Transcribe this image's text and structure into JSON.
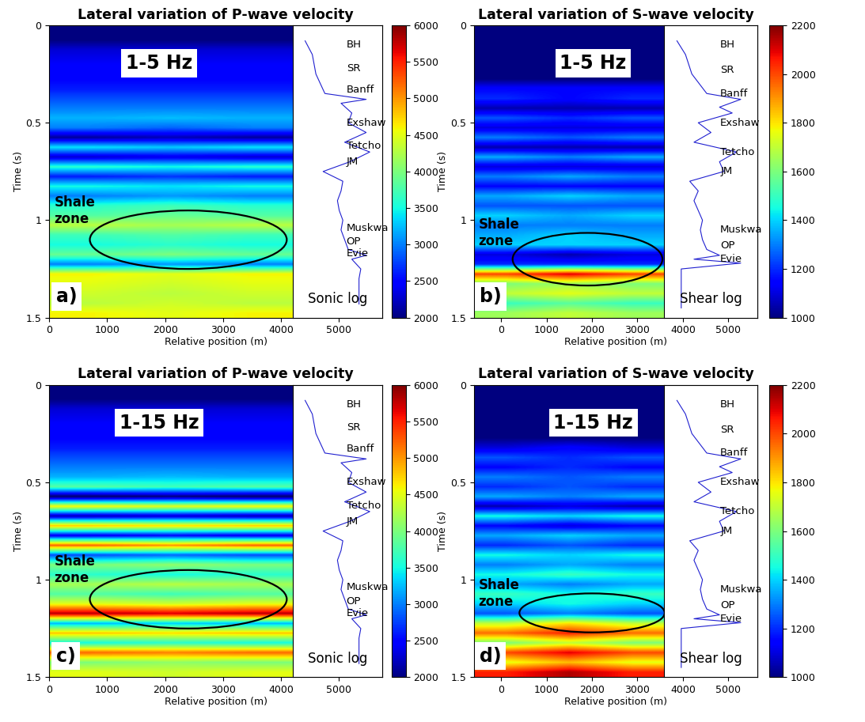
{
  "chart_data": [
    {
      "type": "heatmap",
      "title": "Lateral variation of P-wave velocity",
      "xlabel": "Relative position (m)",
      "ylabel": "Time (s)",
      "xlim": [
        0,
        5750
      ],
      "xticks": [
        0,
        1000,
        2000,
        3000,
        4000,
        5000
      ],
      "ylim": [
        1.5,
        0
      ],
      "yticks": [
        0,
        0.5,
        1,
        1.5
      ],
      "image_x": [
        0,
        4200
      ],
      "image_y": [
        0,
        1.5
      ],
      "cells": [
        [
          2000,
          2000,
          2000
        ],
        [
          2000,
          2000,
          2000
        ],
        [
          2300,
          2300,
          2300
        ],
        [
          2400,
          2400,
          2400
        ],
        [
          2500,
          2500,
          2500
        ],
        [
          2500,
          2500,
          2500
        ],
        [
          2600,
          2600,
          2600
        ],
        [
          2800,
          2800,
          2800
        ],
        [
          3000,
          3000,
          3000
        ],
        [
          3200,
          3250,
          3200
        ],
        [
          3000,
          2900,
          3000
        ],
        [
          2100,
          2200,
          2100
        ],
        [
          3400,
          3300,
          3400
        ],
        [
          2300,
          2400,
          2300
        ],
        [
          3600,
          3500,
          3600
        ],
        [
          2600,
          2700,
          2600
        ],
        [
          3500,
          3400,
          3500
        ],
        [
          3000,
          3100,
          3000
        ],
        [
          3600,
          3700,
          3600
        ],
        [
          3800,
          3900,
          3800
        ],
        [
          4300,
          4200,
          4300
        ],
        [
          3700,
          3800,
          3700
        ],
        [
          3500,
          3600,
          3500
        ],
        [
          3900,
          4000,
          3900
        ],
        [
          3000,
          3100,
          3000
        ],
        [
          4600,
          4500,
          4600
        ],
        [
          4500,
          4400,
          4500
        ],
        [
          4400,
          4300,
          4400
        ],
        [
          4300,
          4400,
          4300
        ],
        [
          4600,
          4500,
          4600
        ]
      ],
      "colorbar": {
        "range": [
          2000,
          6000
        ],
        "ticks": [
          2000,
          2500,
          3000,
          3500,
          4000,
          4500,
          5000,
          5500,
          6000
        ]
      },
      "band_label": "1-5 Hz",
      "panel_label": "a)",
      "zone": {
        "text": "Shale\nzone",
        "x": 2400,
        "y": 1.1,
        "width": 3400,
        "height": 0.3
      },
      "well_log": {
        "label": "Sonic log",
        "xlim": [
          1500,
          6500
        ],
        "time": [
          0.08,
          0.15,
          0.25,
          0.35,
          0.38,
          0.4,
          0.45,
          0.5,
          0.55,
          0.6,
          0.65,
          0.7,
          0.75,
          0.8,
          0.85,
          0.9,
          0.95,
          1.0,
          1.05,
          1.1,
          1.15,
          1.18,
          1.2,
          1.25,
          1.3,
          1.43
        ],
        "values": [
          2200,
          2600,
          2800,
          3300,
          5600,
          4200,
          4800,
          4600,
          5600,
          4400,
          5800,
          4700,
          3200,
          4300,
          4200,
          4000,
          4100,
          4300,
          4200,
          4400,
          4600,
          5600,
          4800,
          5300,
          5200,
          5200
        ],
        "formations": [
          {
            "text": "BH",
            "time": 0.1
          },
          {
            "text": "SR",
            "time": 0.22
          },
          {
            "text": "Banff",
            "time": 0.33
          },
          {
            "text": "Exshaw",
            "time": 0.5
          },
          {
            "text": "Tetcho",
            "time": 0.62
          },
          {
            "text": "JM",
            "time": 0.7
          },
          {
            "text": "Muskwa",
            "time": 1.04
          },
          {
            "text": "OP",
            "time": 1.11
          },
          {
            "text": "Evie",
            "time": 1.17
          }
        ]
      }
    },
    {
      "type": "heatmap",
      "title": "Lateral variation of S-wave velocity",
      "xlabel": "Relative position (m)",
      "ylabel": "Time (s)",
      "xlim": [
        -600,
        5650
      ],
      "xticks": [
        0,
        1000,
        2000,
        3000,
        4000,
        5000
      ],
      "ylim": [
        1.5,
        0
      ],
      "yticks": [
        0,
        0.5,
        1,
        1.5
      ],
      "image_x": [
        -600,
        3590
      ],
      "image_y": [
        0,
        1.5
      ],
      "cells": [
        [
          1000,
          1000,
          1000
        ],
        [
          1000,
          1000,
          1000
        ],
        [
          1000,
          1000,
          1000
        ],
        [
          1000,
          1000,
          1000
        ],
        [
          1000,
          1000,
          1000
        ],
        [
          1000,
          1000,
          1000
        ],
        [
          1150,
          1150,
          1150
        ],
        [
          1200,
          1150,
          1200
        ],
        [
          1050,
          1050,
          1050
        ],
        [
          1250,
          1200,
          1250
        ],
        [
          1100,
          1100,
          1100
        ],
        [
          1300,
          1250,
          1300
        ],
        [
          1050,
          1050,
          1050
        ],
        [
          1350,
          1300,
          1350
        ],
        [
          1100,
          1100,
          1100
        ],
        [
          1300,
          1350,
          1300
        ],
        [
          1150,
          1150,
          1150
        ],
        [
          1350,
          1400,
          1350
        ],
        [
          1250,
          1250,
          1250
        ],
        [
          1400,
          1350,
          1400
        ],
        [
          1300,
          1300,
          1300
        ],
        [
          1350,
          1400,
          1350
        ],
        [
          1400,
          1400,
          1400
        ],
        [
          1100,
          1050,
          1100
        ],
        [
          1200,
          1200,
          1200
        ],
        [
          2000,
          2100,
          2000
        ],
        [
          1600,
          1650,
          1600
        ],
        [
          1700,
          1750,
          1700
        ],
        [
          1500,
          1550,
          1500
        ],
        [
          1650,
          1700,
          1650
        ]
      ],
      "colorbar": {
        "range": [
          1000,
          2200
        ],
        "ticks": [
          1000,
          1200,
          1400,
          1600,
          1800,
          2000,
          2200
        ]
      },
      "band_label": "1-5 Hz",
      "panel_label": "b)",
      "zone": {
        "text": "Shale\nzone",
        "x": 1900,
        "y": 1.2,
        "width": 3300,
        "height": 0.27
      },
      "well_log": {
        "label": "Shear log",
        "xlim": [
          800,
          3000
        ],
        "time": [
          0.08,
          0.15,
          0.25,
          0.35,
          0.38,
          0.42,
          0.45,
          0.5,
          0.55,
          0.6,
          0.65,
          0.7,
          0.75,
          0.8,
          0.85,
          0.9,
          0.95,
          1.0,
          1.05,
          1.1,
          1.15,
          1.18,
          1.2,
          1.22,
          1.25,
          1.3,
          1.45
        ],
        "values": [
          1100,
          1300,
          1450,
          1800,
          2600,
          2100,
          2400,
          1600,
          1900,
          1500,
          2500,
          2100,
          2200,
          1400,
          1600,
          1500,
          1600,
          1700,
          1650,
          1700,
          1800,
          2100,
          1500,
          2600,
          1200,
          1200,
          1200
        ],
        "formations": [
          {
            "text": "BH",
            "time": 0.1
          },
          {
            "text": "SR",
            "time": 0.23
          },
          {
            "text": "Banff",
            "time": 0.35
          },
          {
            "text": "Exshaw",
            "time": 0.5
          },
          {
            "text": "Tetcho",
            "time": 0.65
          },
          {
            "text": "JM",
            "time": 0.75
          },
          {
            "text": "Muskwa",
            "time": 1.05
          },
          {
            "text": "OP",
            "time": 1.13
          },
          {
            "text": "Evie",
            "time": 1.2
          }
        ]
      }
    },
    {
      "type": "heatmap",
      "title": "Lateral variation of P-wave velocity",
      "xlabel": "Relative position (m)",
      "ylabel": "Time (s)",
      "xlim": [
        0,
        5750
      ],
      "xticks": [
        0,
        1000,
        2000,
        3000,
        4000,
        5000
      ],
      "ylim": [
        1.5,
        0
      ],
      "yticks": [
        0,
        0.5,
        1,
        1.5
      ],
      "image_x": [
        0,
        4200
      ],
      "image_y": [
        0,
        1.5
      ],
      "cells": [
        [
          2000,
          2000,
          2000
        ],
        [
          2000,
          2000,
          2000
        ],
        [
          2300,
          2300,
          2300
        ],
        [
          2400,
          2400,
          2400
        ],
        [
          2500,
          2500,
          2500
        ],
        [
          2500,
          2500,
          2500
        ],
        [
          2600,
          2600,
          2600
        ],
        [
          2800,
          2800,
          2800
        ],
        [
          3000,
          3000,
          3000
        ],
        [
          3200,
          3250,
          3200
        ],
        [
          3800,
          3700,
          3800
        ],
        [
          1900,
          2000,
          1900
        ],
        [
          4600,
          4500,
          4600
        ],
        [
          2200,
          2300,
          2200
        ],
        [
          4800,
          4700,
          4800
        ],
        [
          2400,
          2500,
          2400
        ],
        [
          5200,
          5000,
          5200
        ],
        [
          2800,
          2900,
          2800
        ],
        [
          4000,
          4100,
          4000
        ],
        [
          3600,
          3500,
          3600
        ],
        [
          4200,
          4300,
          4200
        ],
        [
          3800,
          3700,
          3800
        ],
        [
          4500,
          4400,
          4500
        ],
        [
          5800,
          5700,
          5800
        ],
        [
          3200,
          3300,
          3200
        ],
        [
          4800,
          4700,
          4800
        ],
        [
          3500,
          3600,
          3500
        ],
        [
          5200,
          5100,
          5200
        ],
        [
          4000,
          4100,
          4000
        ],
        [
          4500,
          4400,
          4500
        ]
      ],
      "colorbar": {
        "range": [
          2000,
          6000
        ],
        "ticks": [
          2000,
          2500,
          3000,
          3500,
          4000,
          4500,
          5000,
          5500,
          6000
        ]
      },
      "band_label": "1-15 Hz",
      "panel_label": "c)",
      "zone": {
        "text": "Shale\nzone",
        "x": 2400,
        "y": 1.1,
        "width": 3400,
        "height": 0.3
      },
      "well_log": {
        "label": "Sonic log",
        "xlim": [
          1500,
          6500
        ],
        "time": [
          0.08,
          0.15,
          0.25,
          0.35,
          0.38,
          0.4,
          0.45,
          0.5,
          0.55,
          0.6,
          0.65,
          0.7,
          0.75,
          0.8,
          0.85,
          0.9,
          0.95,
          1.0,
          1.05,
          1.1,
          1.15,
          1.18,
          1.2,
          1.25,
          1.3,
          1.43
        ],
        "values": [
          2200,
          2600,
          2800,
          3300,
          5600,
          4200,
          4800,
          4600,
          5600,
          4400,
          5800,
          4700,
          3200,
          4300,
          4200,
          4000,
          4100,
          4300,
          4200,
          4400,
          4600,
          5600,
          4800,
          5300,
          5200,
          5200
        ],
        "formations": [
          {
            "text": "BH",
            "time": 0.1
          },
          {
            "text": "SR",
            "time": 0.22
          },
          {
            "text": "Banff",
            "time": 0.33
          },
          {
            "text": "Exshaw",
            "time": 0.5
          },
          {
            "text": "Tetcho",
            "time": 0.62
          },
          {
            "text": "JM",
            "time": 0.7
          },
          {
            "text": "Muskwa",
            "time": 1.04
          },
          {
            "text": "OP",
            "time": 1.11
          },
          {
            "text": "Evie",
            "time": 1.17
          }
        ]
      }
    },
    {
      "type": "heatmap",
      "title": "Lateral variation of S-wave velocity",
      "xlabel": "Relative position (m)",
      "ylabel": "Time (s)",
      "xlim": [
        -600,
        5650
      ],
      "xticks": [
        0,
        1000,
        2000,
        3000,
        4000,
        5000
      ],
      "ylim": [
        1.5,
        0
      ],
      "yticks": [
        0,
        0.5,
        1,
        1.5
      ],
      "image_x": [
        -600,
        3590
      ],
      "image_y": [
        0,
        1.5
      ],
      "cells": [
        [
          1000,
          1000,
          1000
        ],
        [
          1000,
          1000,
          1000
        ],
        [
          1000,
          1000,
          1000
        ],
        [
          1000,
          1000,
          1000
        ],
        [
          1000,
          1000,
          1000
        ],
        [
          1000,
          1000,
          1000
        ],
        [
          1100,
          1150,
          1100
        ],
        [
          1250,
          1200,
          1250
        ],
        [
          1150,
          1200,
          1150
        ],
        [
          1300,
          1250,
          1300
        ],
        [
          1200,
          1250,
          1200
        ],
        [
          1350,
          1300,
          1350
        ],
        [
          1050,
          1100,
          1050
        ],
        [
          1450,
          1400,
          1450
        ],
        [
          1150,
          1100,
          1150
        ],
        [
          1350,
          1400,
          1350
        ],
        [
          1200,
          1250,
          1200
        ],
        [
          1450,
          1400,
          1450
        ],
        [
          1300,
          1350,
          1300
        ],
        [
          1450,
          1500,
          1450
        ],
        [
          1350,
          1300,
          1350
        ],
        [
          1500,
          1450,
          1500
        ],
        [
          1400,
          1450,
          1400
        ],
        [
          1250,
          1300,
          1250
        ],
        [
          1700,
          1800,
          1700
        ],
        [
          1950,
          2050,
          1950
        ],
        [
          1600,
          1700,
          1600
        ],
        [
          2000,
          2100,
          2000
        ],
        [
          1750,
          1850,
          1750
        ],
        [
          2050,
          2150,
          2050
        ]
      ],
      "colorbar": {
        "range": [
          1000,
          2200
        ],
        "ticks": [
          1000,
          1200,
          1400,
          1600,
          1800,
          2000,
          2200
        ]
      },
      "band_label": "1-15 Hz",
      "panel_label": "d)",
      "zone": {
        "text": "Shale\nzone",
        "x": 2000,
        "y": 1.17,
        "width": 3200,
        "height": 0.2
      },
      "well_log": {
        "label": "Shear log",
        "xlim": [
          800,
          3000
        ],
        "time": [
          0.08,
          0.15,
          0.25,
          0.35,
          0.38,
          0.42,
          0.45,
          0.5,
          0.55,
          0.6,
          0.65,
          0.7,
          0.75,
          0.8,
          0.85,
          0.9,
          0.95,
          1.0,
          1.05,
          1.1,
          1.15,
          1.18,
          1.2,
          1.22,
          1.25,
          1.3,
          1.45
        ],
        "values": [
          1100,
          1300,
          1450,
          1800,
          2600,
          2100,
          2400,
          1600,
          1900,
          1500,
          2500,
          2100,
          2200,
          1400,
          1600,
          1500,
          1600,
          1700,
          1650,
          1700,
          1800,
          2100,
          1500,
          2600,
          1200,
          1200,
          1200
        ],
        "formations": [
          {
            "text": "BH",
            "time": 0.1
          },
          {
            "text": "SR",
            "time": 0.23
          },
          {
            "text": "Banff",
            "time": 0.35
          },
          {
            "text": "Exshaw",
            "time": 0.5
          },
          {
            "text": "Tetcho",
            "time": 0.65
          },
          {
            "text": "JM",
            "time": 0.75
          },
          {
            "text": "Muskwa",
            "time": 1.05
          },
          {
            "text": "OP",
            "time": 1.13
          },
          {
            "text": "Evie",
            "time": 1.2
          }
        ]
      }
    }
  ]
}
